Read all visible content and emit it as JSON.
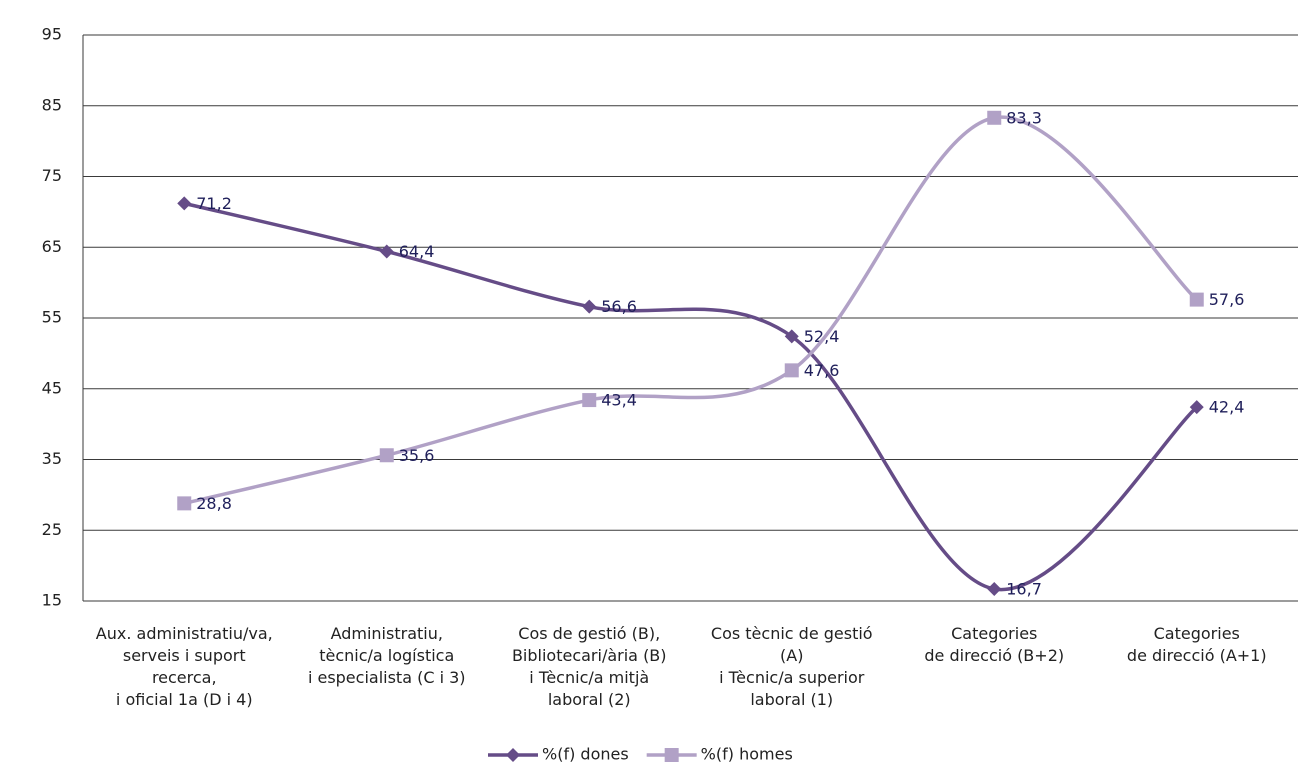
{
  "chart_data": {
    "type": "line",
    "categories": [
      "Aux. administratiu/va,\nserveis i suport\nrecerca,\ni oficial 1a (D i 4)",
      "Administratiu,\ntècnic/a logística\ni especialista (C i 3)",
      "Cos de gestió (B),\nBibliotecari/ària (B)\ni Tècnic/a mitjà\nlaboral (2)",
      "Cos tècnic de gestió\n(A)\ni Tècnic/a superior\nlaboral (1)",
      "Categories\nde direcció (B+2)",
      "Categories\nde direcció (A+1)"
    ],
    "series": [
      {
        "name": "%(f) dones",
        "color": "#654c87",
        "marker": "diamond",
        "values": [
          71.2,
          64.4,
          56.6,
          52.4,
          16.7,
          42.4
        ],
        "value_labels": [
          "71,2",
          "64,4",
          "56,6",
          "52,4",
          "16,7",
          "42,4"
        ]
      },
      {
        "name": "%(f) homes",
        "color": "#b1a1c6",
        "marker": "square",
        "values": [
          28.8,
          35.6,
          43.4,
          47.6,
          83.3,
          57.6
        ],
        "value_labels": [
          "28,8",
          "35,6",
          "43,4",
          "47,6",
          "83,3",
          "57,6"
        ]
      }
    ],
    "ylim": [
      15,
      95
    ],
    "yticks": [
      15,
      25,
      35,
      45,
      55,
      65,
      75,
      85,
      95
    ],
    "grid": true,
    "smooth": true,
    "legend": "bottom"
  }
}
